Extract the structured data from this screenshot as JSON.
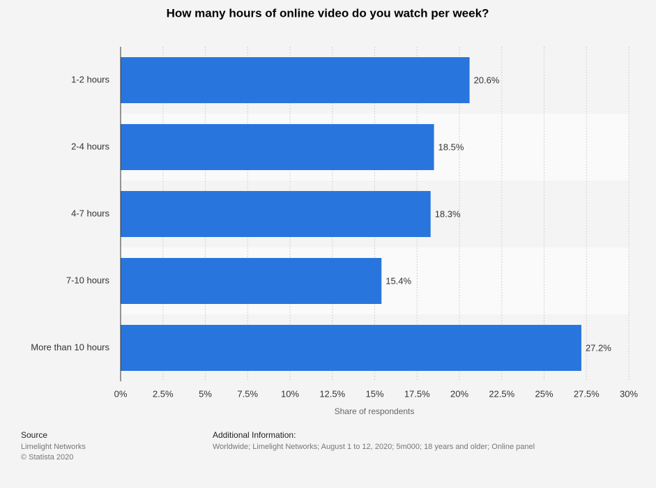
{
  "chart_data": {
    "type": "hbar",
    "title": "How many hours of online video do you watch per week?",
    "categories": [
      "1-2 hours",
      "2-4 hours",
      "4-7 hours",
      "7-10 hours",
      "More than 10 hours"
    ],
    "values": [
      20.6,
      18.5,
      18.3,
      15.4,
      27.2
    ],
    "value_labels": [
      "20.6%",
      "18.5%",
      "18.3%",
      "15.4%",
      "27.2%"
    ],
    "color": "#2876dd",
    "xlabel": "Share of respondents",
    "xlim": [
      0,
      30
    ],
    "xticks": [
      {
        "value": 0,
        "label": "0%"
      },
      {
        "value": 2.5,
        "label": "2.5%"
      },
      {
        "value": 5,
        "label": "5%"
      },
      {
        "value": 7.5,
        "label": "7.5%"
      },
      {
        "value": 10,
        "label": "10%"
      },
      {
        "value": 12.5,
        "label": "12.5%"
      },
      {
        "value": 15,
        "label": "15%"
      },
      {
        "value": 17.5,
        "label": "17.5%"
      },
      {
        "value": 20,
        "label": "20%"
      },
      {
        "value": 22.5,
        "label": "22.5%"
      },
      {
        "value": 25,
        "label": "25%"
      },
      {
        "value": 27.5,
        "label": "27.5%"
      },
      {
        "value": 30,
        "label": "30%"
      }
    ],
    "grid": true
  },
  "footer": {
    "source_title": "Source",
    "source_lines": [
      "Limelight Networks",
      "© Statista 2020"
    ],
    "info_title": "Additional Information:",
    "info_text": "Worldwide; Limelight Networks; August 1 to 12, 2020; 5m000; 18 years and older; Online panel"
  }
}
